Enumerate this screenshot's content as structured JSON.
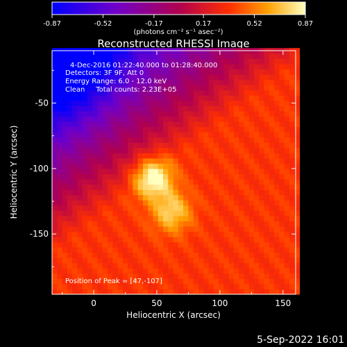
{
  "chart_data": {
    "type": "heatmap",
    "title": "Reconstructed RHESSI Image",
    "xlabel": "Heliocentric X (arcsec)",
    "ylabel": "Heliocentric Y (arcsec)",
    "xlim": [
      -33,
      160
    ],
    "ylim": [
      -196,
      -10
    ],
    "xticks": [
      0,
      50,
      100,
      150
    ],
    "yticks": [
      -50,
      -100,
      -150
    ],
    "colorbar": {
      "ticks": [
        -0.87,
        -0.52,
        -0.17,
        0.17,
        0.52,
        0.87
      ],
      "tick_labels": [
        "-0.87",
        "-0.52",
        "-0.17",
        "0.17",
        "0.52",
        "0.87"
      ],
      "unit_label": "(photons cm⁻² s⁻¹ asec⁻²)",
      "range": [
        -0.87,
        0.87
      ]
    },
    "info_lines": [
      "4-Dec-2016 01:22:40.000 to 01:28:40.000",
      "Detectors: 3F 9F, Att 0",
      "Energy Range: 6.0 - 12.0 keV",
      "Clean     Total counts: 2.23E+05"
    ],
    "peak_label": "Position of Peak = [47,-107]",
    "sources": [
      {
        "x": 47,
        "y": -107,
        "value": 0.87
      },
      {
        "x": 62,
        "y": -133,
        "value": 0.7
      }
    ],
    "background_min_region": {
      "x": -30,
      "y": -15,
      "value": -0.87
    }
  },
  "footer": {
    "timestamp": "5-Sep-2022 16:01"
  }
}
